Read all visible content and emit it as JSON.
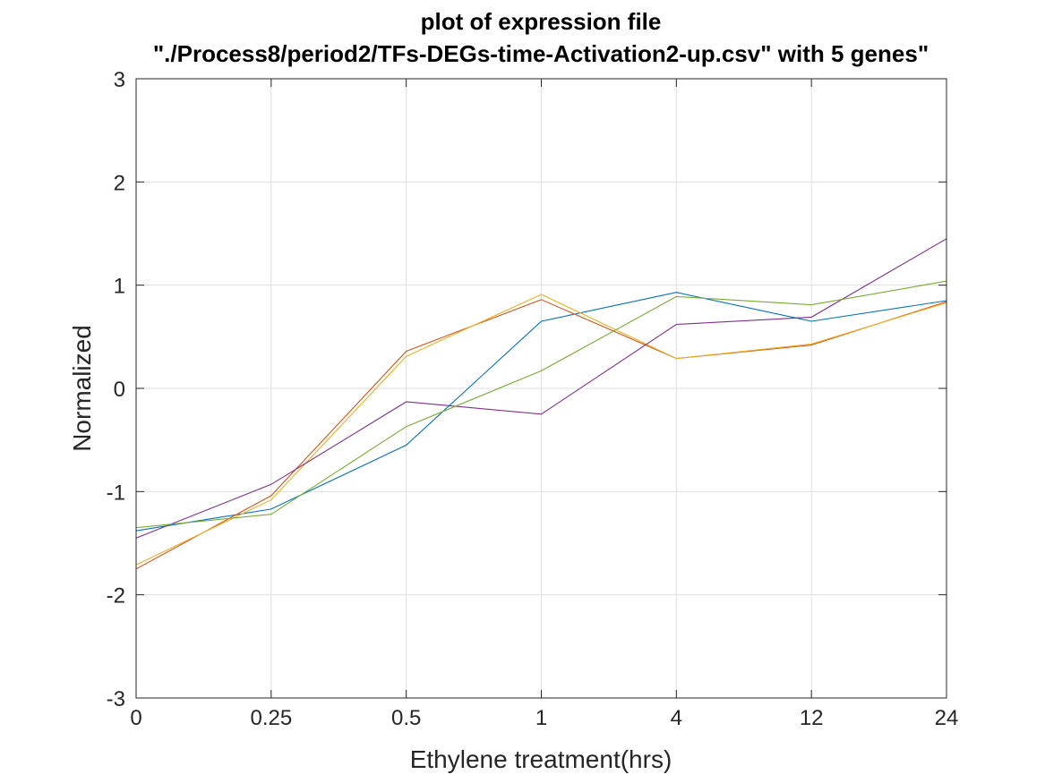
{
  "chart_data": {
    "type": "line",
    "title": [
      "plot of expression file",
      "\"./Process8/period2/TFs-DEGs-time-Activation2-up.csv\" with 5 genes\""
    ],
    "xlabel": "Ethylene treatment(hrs)",
    "ylabel": "Normalized",
    "categories": [
      "0",
      "0.25",
      "0.5",
      "1",
      "4",
      "12",
      "24"
    ],
    "ylim": [
      -3,
      3
    ],
    "yticks": [
      -3,
      -2,
      -1,
      0,
      1,
      2,
      3
    ],
    "grid": true,
    "legend": "none",
    "series": [
      {
        "color": "#0072bd",
        "values": [
          -1.38,
          -1.17,
          -0.55,
          0.65,
          0.93,
          0.65,
          0.85
        ]
      },
      {
        "color": "#d95319",
        "values": [
          -1.75,
          -1.04,
          0.36,
          0.86,
          0.29,
          0.42,
          0.84
        ]
      },
      {
        "color": "#edb120",
        "values": [
          -1.71,
          -1.08,
          0.31,
          0.91,
          0.29,
          0.43,
          0.83
        ]
      },
      {
        "color": "#7e2f8e",
        "values": [
          -1.45,
          -0.93,
          -0.13,
          -0.25,
          0.62,
          0.69,
          1.45
        ]
      },
      {
        "color": "#77ac30",
        "values": [
          -1.35,
          -1.22,
          -0.37,
          0.17,
          0.89,
          0.81,
          1.04
        ]
      }
    ]
  }
}
